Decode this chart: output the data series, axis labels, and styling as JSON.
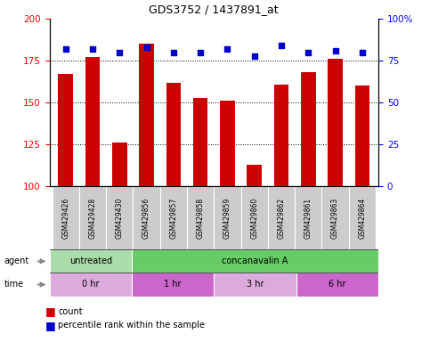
{
  "title": "GDS3752 / 1437891_at",
  "samples": [
    "GSM429426",
    "GSM429428",
    "GSM429430",
    "GSM429856",
    "GSM429857",
    "GSM429858",
    "GSM429859",
    "GSM429860",
    "GSM429862",
    "GSM429861",
    "GSM429863",
    "GSM429864"
  ],
  "count_values": [
    167,
    177,
    126,
    185,
    162,
    153,
    151,
    113,
    161,
    168,
    176,
    160
  ],
  "percentile_values": [
    82,
    82,
    80,
    83,
    80,
    80,
    82,
    78,
    84,
    80,
    81,
    80
  ],
  "ylim_left": [
    100,
    200
  ],
  "ylim_right": [
    0,
    100
  ],
  "yticks_left": [
    100,
    125,
    150,
    175,
    200
  ],
  "yticks_right": [
    0,
    25,
    50,
    75,
    100
  ],
  "bar_color": "#cc0000",
  "dot_color": "#0000cc",
  "agent_groups": [
    {
      "label": "untreated",
      "start": 0,
      "end": 3,
      "color": "#aaddaa"
    },
    {
      "label": "concanavalin A",
      "start": 3,
      "end": 12,
      "color": "#66cc66"
    }
  ],
  "time_groups": [
    {
      "label": "0 hr",
      "start": 0,
      "end": 3,
      "color": "#ddaadd"
    },
    {
      "label": "1 hr",
      "start": 3,
      "end": 6,
      "color": "#cc66cc"
    },
    {
      "label": "3 hr",
      "start": 6,
      "end": 9,
      "color": "#ddaadd"
    },
    {
      "label": "6 hr",
      "start": 9,
      "end": 12,
      "color": "#cc66cc"
    }
  ],
  "bg_color": "#ffffff"
}
